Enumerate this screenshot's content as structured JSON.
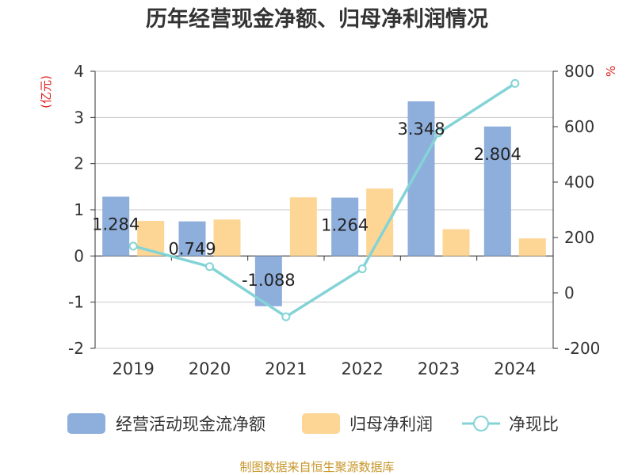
{
  "chart_data": {
    "type": "bar",
    "title": "历年经营现金净额、归母净利润情况",
    "categories": [
      "2019",
      "2020",
      "2021",
      "2022",
      "2023",
      "2024"
    ],
    "series": [
      {
        "name": "经营活动现金流净额",
        "type": "bar",
        "axis": "left",
        "color": "#8eaedc",
        "values": [
          1.284,
          0.749,
          -1.088,
          1.264,
          3.348,
          2.804
        ],
        "value_labels": [
          "1.284",
          "0.749",
          "-1.088",
          "1.264",
          "3.348",
          "2.804"
        ]
      },
      {
        "name": "归母净利润",
        "type": "bar",
        "axis": "left",
        "color": "#fdd696",
        "values": [
          0.76,
          0.79,
          1.27,
          1.46,
          0.58,
          0.38
        ]
      },
      {
        "name": "净现比",
        "type": "line",
        "axis": "right",
        "color": "#84d3d6",
        "values": [
          169,
          95,
          -86,
          87,
          578,
          756
        ]
      }
    ],
    "y_left": {
      "unit_label": "(亿元)",
      "ylim": [
        -2,
        4
      ],
      "ticks": [
        4,
        3,
        2,
        1,
        0,
        -1,
        -2
      ],
      "tick_labels": [
        "4",
        "3",
        "2",
        "1",
        "0",
        "-1",
        "-2"
      ]
    },
    "y_right": {
      "unit_label": "%",
      "ylim": [
        -200,
        800
      ],
      "ticks": [
        800,
        600,
        400,
        200,
        0,
        -200
      ],
      "tick_labels": [
        "800",
        "600",
        "400",
        "200",
        "0",
        "-200"
      ]
    },
    "grid": true,
    "legend_position": "bottom",
    "source_note": "制图数据来自恒生聚源数据库"
  }
}
